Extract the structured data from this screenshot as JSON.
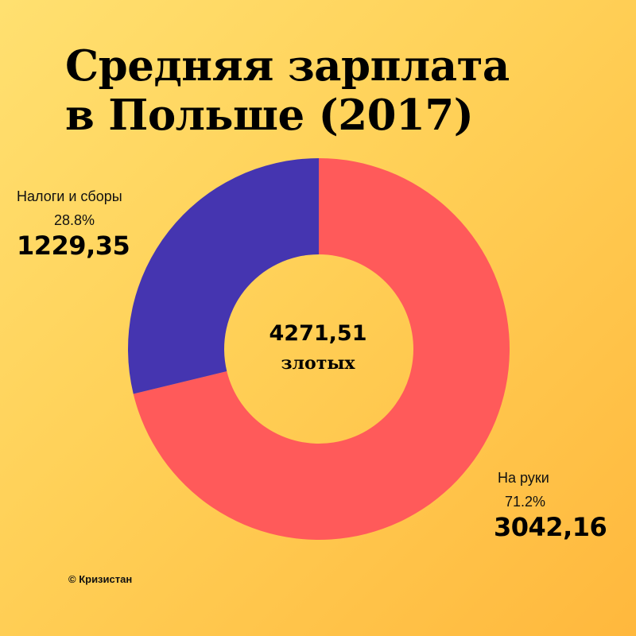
{
  "chart_data": {
    "type": "pie",
    "title_lines": [
      "Средняя зарплата",
      "в Польше (2017)"
    ],
    "total": "4271,51",
    "unit": "злотых",
    "slices": [
      {
        "label": "На руки",
        "percent_label": "71.2%",
        "value_label": "3042,16",
        "value": 3042.16,
        "percent": 71.2,
        "color": "#ff5a5a"
      },
      {
        "label": "Налоги и сборы",
        "percent_label": "28.8%",
        "value_label": "1229,35",
        "value": 1229.35,
        "percent": 28.8,
        "color": "#4535b0"
      }
    ]
  },
  "credit": "© Кризистан"
}
